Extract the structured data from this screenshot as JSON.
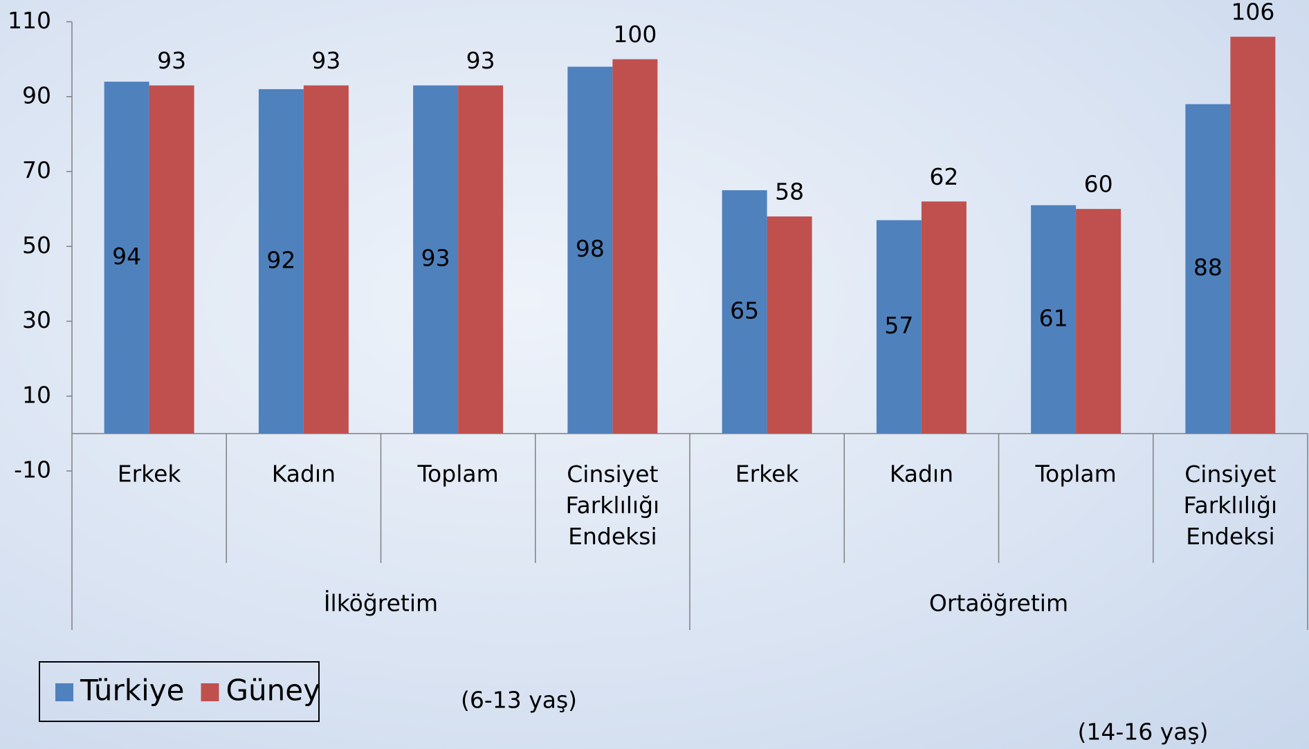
{
  "chart_data": {
    "type": "bar",
    "categories": [
      "Erkek",
      "Kadın",
      "Toplam",
      "Cinsiyet Farklılığı Endeksi",
      "Erkek",
      "Kadın",
      "Toplam",
      "Cinsiyet Farklılığı Endeksi"
    ],
    "groups": [
      {
        "label": "İlköğretim",
        "note": "(6-13 yaş)"
      },
      {
        "label": "Ortaöğretim",
        "note": "(14-16 yaş)"
      }
    ],
    "series": [
      {
        "name": "Türkiye",
        "color": "#4f81bd",
        "values": [
          94,
          92,
          93,
          98,
          65,
          57,
          61,
          88
        ]
      },
      {
        "name": "Güney",
        "color": "#c0504d",
        "values": [
          93,
          93,
          93,
          100,
          58,
          62,
          60,
          106
        ]
      }
    ],
    "ylim": [
      -10,
      110
    ],
    "yticks": [
      -10,
      10,
      30,
      50,
      70,
      90,
      110
    ],
    "grid": false
  }
}
